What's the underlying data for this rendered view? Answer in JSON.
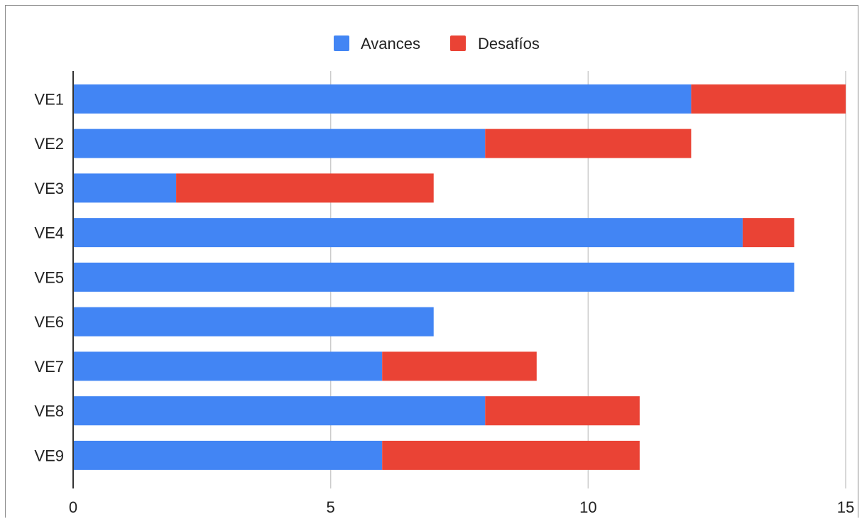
{
  "chart_data": {
    "type": "bar",
    "orientation": "horizontal",
    "stacked": true,
    "categories": [
      "VE1",
      "VE2",
      "VE3",
      "VE4",
      "VE5",
      "VE6",
      "VE7",
      "VE8",
      "VE9"
    ],
    "series": [
      {
        "name": "Avances",
        "color": "#4285f4",
        "values": [
          12,
          8,
          2,
          13,
          14,
          7,
          6,
          8,
          6
        ]
      },
      {
        "name": "Desafíos",
        "color": "#ea4335",
        "values": [
          3,
          4,
          5,
          1,
          0,
          0,
          3,
          3,
          5
        ]
      }
    ],
    "xlim": [
      0,
      15
    ],
    "xticks": [
      "0",
      "5",
      "10",
      "15"
    ],
    "grid": "vertical",
    "legend_position": "top"
  }
}
